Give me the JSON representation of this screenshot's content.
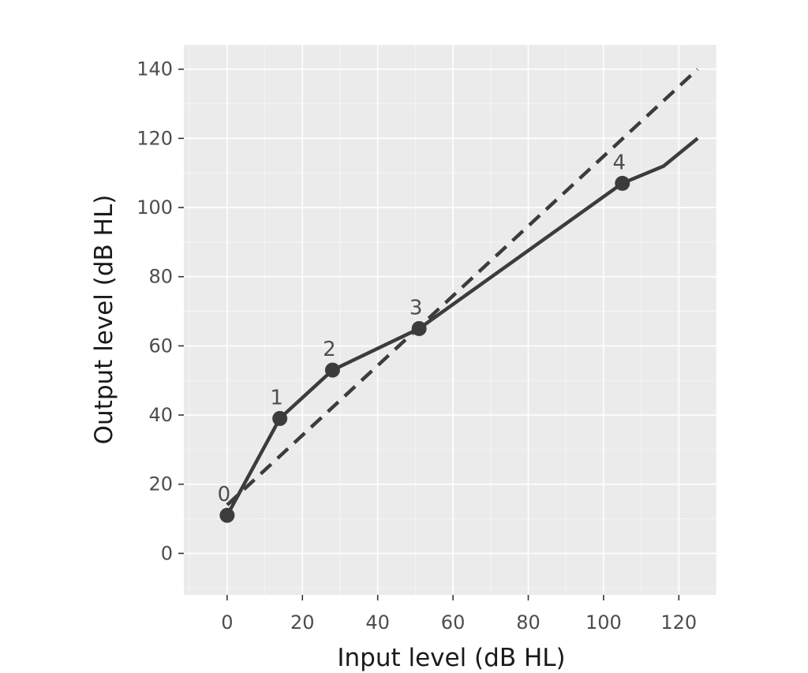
{
  "chart_data": {
    "type": "line",
    "title": "",
    "xlabel": "Input level (dB HL)",
    "ylabel": "Output level (dB HL)",
    "xlim": [
      -11.5,
      130
    ],
    "ylim": [
      -12,
      147
    ],
    "x_ticks": [
      0,
      20,
      40,
      60,
      80,
      100,
      120
    ],
    "y_ticks": [
      0,
      20,
      40,
      60,
      80,
      100,
      120,
      140
    ],
    "grid": true,
    "legend": "none",
    "colors": {
      "panel": "#ebebeb",
      "grid": "#ffffff",
      "line": "#3c3c3c",
      "tick_text": "#4d4d4d",
      "title_text": "#1a1a1a"
    },
    "series": [
      {
        "style": "solid",
        "x": [
          0,
          14,
          28,
          51,
          105,
          116,
          125
        ],
        "y": [
          11,
          39,
          53,
          65,
          107,
          112,
          120
        ]
      },
      {
        "style": "dashed",
        "x": [
          0,
          125
        ],
        "y": [
          14,
          140
        ]
      }
    ],
    "points": [
      {
        "label": "0",
        "x": 0,
        "y": 11
      },
      {
        "label": "1",
        "x": 14,
        "y": 39
      },
      {
        "label": "2",
        "x": 28,
        "y": 53
      },
      {
        "label": "3",
        "x": 51,
        "y": 65
      },
      {
        "label": "4",
        "x": 105,
        "y": 107
      }
    ]
  }
}
